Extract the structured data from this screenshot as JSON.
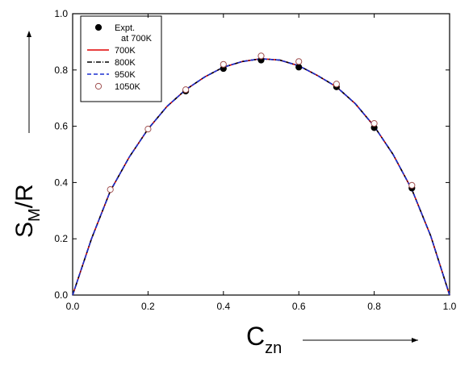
{
  "chart_data": {
    "type": "line",
    "xlabel": [
      "C",
      "zn"
    ],
    "ylabel": [
      "S",
      "M",
      "/R"
    ],
    "xlim": [
      0,
      1
    ],
    "ylim": [
      0,
      1
    ],
    "xticks": [
      {
        "value": 0,
        "label": "0.0"
      },
      0.2,
      0.4,
      0.6,
      0.8,
      {
        "value": 1,
        "label": "1.0"
      }
    ],
    "yticks": [
      {
        "value": 0,
        "label": "0.0"
      },
      0.2,
      0.4,
      0.6,
      0.8,
      {
        "value": 1,
        "label": "1.0"
      }
    ],
    "legend": "top-left",
    "series": [
      {
        "name": [
          "Expt.",
          "at 700K"
        ],
        "color": "#000000",
        "marker": "filled",
        "x": [
          0.3,
          0.4,
          0.5,
          0.6,
          0.7,
          0.8,
          0.9
        ],
        "values": [
          0.725,
          0.805,
          0.835,
          0.81,
          0.74,
          0.595,
          0.38
        ]
      },
      {
        "name": [
          "700K"
        ],
        "color": "#e00000",
        "dash": "none",
        "x": [
          0,
          0.05,
          0.1,
          0.15,
          0.2,
          0.25,
          0.3,
          0.35,
          0.4,
          0.45,
          0.5,
          0.55,
          0.6,
          0.65,
          0.7,
          0.75,
          0.8,
          0.85,
          0.9,
          0.95,
          1
        ],
        "values": [
          0,
          0.2,
          0.37,
          0.49,
          0.59,
          0.67,
          0.73,
          0.775,
          0.81,
          0.83,
          0.84,
          0.835,
          0.815,
          0.78,
          0.74,
          0.68,
          0.6,
          0.5,
          0.375,
          0.21,
          0
        ]
      },
      {
        "name": [
          "800K"
        ],
        "color": "#000000",
        "dash": "6 2 1 2",
        "x": [
          0,
          0.05,
          0.1,
          0.15,
          0.2,
          0.25,
          0.3,
          0.35,
          0.4,
          0.45,
          0.5,
          0.55,
          0.6,
          0.65,
          0.7,
          0.75,
          0.8,
          0.85,
          0.9,
          0.95,
          1
        ],
        "values": [
          0,
          0.2,
          0.37,
          0.49,
          0.59,
          0.67,
          0.73,
          0.775,
          0.81,
          0.83,
          0.84,
          0.835,
          0.815,
          0.78,
          0.74,
          0.68,
          0.6,
          0.5,
          0.375,
          0.21,
          0
        ]
      },
      {
        "name": [
          "950K"
        ],
        "color": "#1a2fd0",
        "dash": "5 3",
        "x": [
          0,
          0.05,
          0.1,
          0.15,
          0.2,
          0.25,
          0.3,
          0.35,
          0.4,
          0.45,
          0.5,
          0.55,
          0.6,
          0.65,
          0.7,
          0.75,
          0.8,
          0.85,
          0.9,
          0.95,
          1
        ],
        "values": [
          0,
          0.2,
          0.37,
          0.49,
          0.59,
          0.67,
          0.73,
          0.775,
          0.81,
          0.83,
          0.84,
          0.835,
          0.815,
          0.78,
          0.74,
          0.68,
          0.6,
          0.5,
          0.375,
          0.21,
          0
        ]
      },
      {
        "name": [
          "1050K"
        ],
        "color": "#a05050",
        "marker": "open",
        "x": [
          0.1,
          0.2,
          0.3,
          0.4,
          0.5,
          0.6,
          0.7,
          0.8,
          0.9
        ],
        "values": [
          0.375,
          0.59,
          0.73,
          0.82,
          0.85,
          0.83,
          0.75,
          0.61,
          0.39
        ]
      }
    ]
  }
}
